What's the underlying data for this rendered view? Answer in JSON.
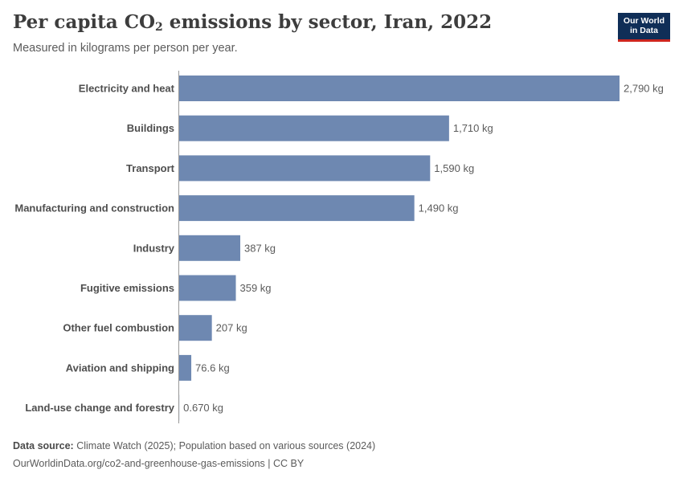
{
  "header": {
    "title_main": "Per capita CO",
    "title_sub": "2",
    "title_rest": " emissions by sector, Iran, 2022",
    "subtitle": "Measured in kilograms per person per year.",
    "logo_line1": "Our World",
    "logo_line2": "in Data"
  },
  "footer": {
    "source_label": "Data source:",
    "source_text": " Climate Watch (2025); Population based on various sources (2024)",
    "url_text": "OurWorldinData.org/co2-and-greenhouse-gas-emissions | CC BY"
  },
  "colors": {
    "bar": "#6e88b1",
    "axis": "#999999"
  },
  "chart_data": {
    "type": "bar",
    "orientation": "horizontal",
    "title": "Per capita CO₂ emissions by sector, Iran, 2022",
    "subtitle": "Measured in kilograms per person per year.",
    "unit": "kg",
    "categories": [
      "Electricity and heat",
      "Buildings",
      "Transport",
      "Manufacturing and construction",
      "Industry",
      "Fugitive emissions",
      "Other fuel combustion",
      "Aviation and shipping",
      "Land-use change and forestry"
    ],
    "values": [
      2790,
      1710,
      1590,
      1490,
      387,
      359,
      207,
      76.6,
      0.67
    ],
    "value_labels": [
      "2,790 kg",
      "1,710 kg",
      "1,590 kg",
      "1,490 kg",
      "387 kg",
      "359 kg",
      "207 kg",
      "76.6 kg",
      "0.670 kg"
    ],
    "xlim": [
      0,
      2790
    ],
    "grid": false,
    "legend": "none"
  }
}
